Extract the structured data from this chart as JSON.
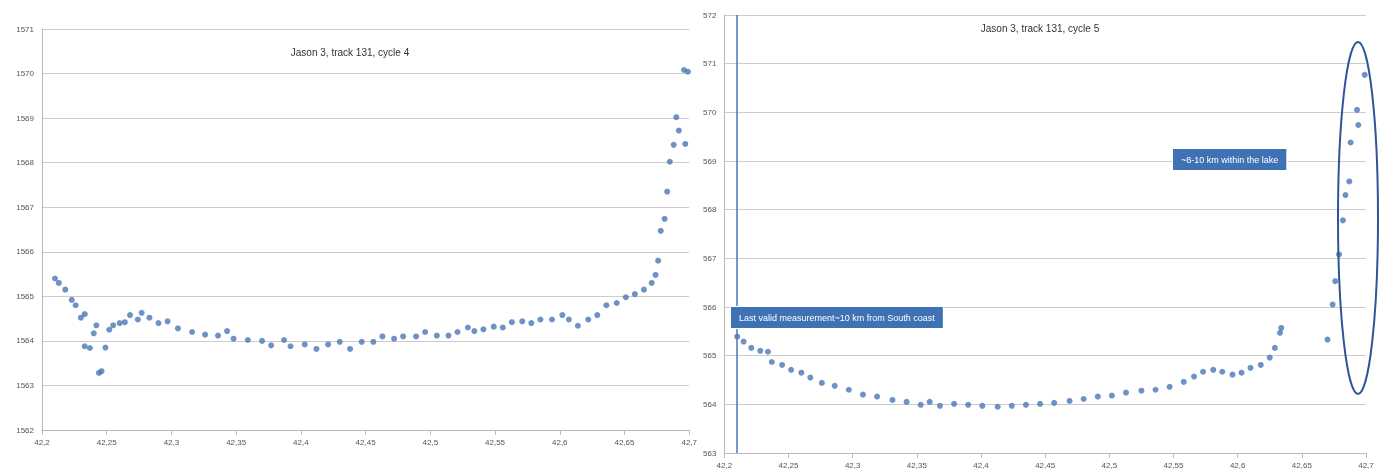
{
  "chart_data": [
    {
      "type": "scatter",
      "title": "Jason 3, track 131, cycle 4",
      "marker": "circle",
      "grid": "y",
      "xlim": [
        42.2,
        42.7
      ],
      "xticks": [
        {
          "value": 42.2,
          "label": "42,2"
        },
        {
          "value": 42.25,
          "label": "42,25"
        },
        {
          "value": 42.3,
          "label": "42,3"
        },
        {
          "value": 42.35,
          "label": "42,35"
        },
        {
          "value": 42.4,
          "label": "42,4"
        },
        {
          "value": 42.45,
          "label": "42,45"
        },
        {
          "value": 42.5,
          "label": "42,5"
        },
        {
          "value": 42.55,
          "label": "42,55"
        },
        {
          "value": 42.6,
          "label": "42,6"
        },
        {
          "value": 42.65,
          "label": "42,65"
        },
        {
          "value": 42.7,
          "label": "42,7"
        }
      ],
      "ylim": [
        1562,
        1571
      ],
      "yticks": [
        1562,
        1563,
        1564,
        1565,
        1566,
        1567,
        1568,
        1569,
        1570,
        1571
      ],
      "series": [
        {
          "color": "#4a76b8",
          "x": [
            42.21,
            42.213,
            42.218,
            42.223,
            42.226,
            42.23,
            42.233,
            42.233,
            42.237,
            42.24,
            42.242,
            42.244,
            42.246,
            42.249,
            42.252,
            42.255,
            42.26,
            42.264,
            42.268,
            42.274,
            42.277,
            42.283,
            42.29,
            42.297,
            42.305,
            42.316,
            42.326,
            42.336,
            42.343,
            42.348,
            42.359,
            42.37,
            42.377,
            42.387,
            42.392,
            42.403,
            42.412,
            42.421,
            42.43,
            42.438,
            42.447,
            42.456,
            42.463,
            42.472,
            42.479,
            42.489,
            42.496,
            42.505,
            42.514,
            42.521,
            42.529,
            42.534,
            42.541,
            42.549,
            42.556,
            42.563,
            42.571,
            42.578,
            42.585,
            42.594,
            42.602,
            42.607,
            42.614,
            42.622,
            42.629,
            42.636,
            42.644,
            42.651,
            42.658,
            42.665,
            42.671,
            42.674,
            42.676,
            42.678,
            42.681,
            42.683,
            42.685,
            42.688,
            42.69,
            42.692,
            42.697,
            42.696,
            42.699
          ],
          "values": [
            1565.4,
            1565.3,
            1565.15,
            1564.92,
            1564.8,
            1564.52,
            1564.6,
            1563.88,
            1563.84,
            1564.17,
            1564.35,
            1563.28,
            1563.32,
            1563.85,
            1564.25,
            1564.35,
            1564.4,
            1564.42,
            1564.58,
            1564.48,
            1564.63,
            1564.52,
            1564.4,
            1564.44,
            1564.28,
            1564.2,
            1564.14,
            1564.12,
            1564.22,
            1564.05,
            1564.02,
            1564.0,
            1563.9,
            1564.02,
            1563.88,
            1563.92,
            1563.82,
            1563.92,
            1563.98,
            1563.82,
            1563.98,
            1563.98,
            1564.1,
            1564.05,
            1564.1,
            1564.1,
            1564.2,
            1564.12,
            1564.12,
            1564.2,
            1564.3,
            1564.22,
            1564.26,
            1564.32,
            1564.3,
            1564.42,
            1564.44,
            1564.4,
            1564.48,
            1564.48,
            1564.58,
            1564.48,
            1564.34,
            1564.48,
            1564.58,
            1564.8,
            1564.85,
            1564.98,
            1565.05,
            1565.15,
            1565.3,
            1565.48,
            1565.8,
            1566.47,
            1566.74,
            1567.35,
            1568.02,
            1568.4,
            1569.02,
            1568.72,
            1568.42,
            1570.08,
            1570.04
          ]
        }
      ]
    },
    {
      "type": "scatter",
      "title": "Jason 3, track 131, cycle 5",
      "marker": "circle",
      "grid": "y",
      "xlim": [
        42.2,
        42.7
      ],
      "xticks": [
        {
          "value": 42.2,
          "label": "42,2"
        },
        {
          "value": 42.25,
          "label": "42,25"
        },
        {
          "value": 42.3,
          "label": "42,3"
        },
        {
          "value": 42.35,
          "label": "42,35"
        },
        {
          "value": 42.4,
          "label": "42,4"
        },
        {
          "value": 42.45,
          "label": "42,45"
        },
        {
          "value": 42.5,
          "label": "42,5"
        },
        {
          "value": 42.55,
          "label": "42,55"
        },
        {
          "value": 42.6,
          "label": "42,6"
        },
        {
          "value": 42.65,
          "label": "42,65"
        },
        {
          "value": 42.7,
          "label": "42,7"
        }
      ],
      "ylim": [
        563,
        572
      ],
      "yticks": [
        563,
        564,
        565,
        566,
        567,
        568,
        569,
        570,
        571,
        572
      ],
      "annotations": [
        "Last valid measurement~10 km from South coast",
        "~8-10 km within the lake"
      ],
      "ref_lines": [
        {
          "axis": "x",
          "value": 42.21,
          "color": "#4a7ab5"
        }
      ],
      "series": [
        {
          "color": "#4a76b8",
          "x": [
            42.21,
            42.215,
            42.221,
            42.228,
            42.234,
            42.237,
            42.245,
            42.252,
            42.26,
            42.267,
            42.276,
            42.286,
            42.297,
            42.308,
            42.319,
            42.331,
            42.342,
            42.353,
            42.36,
            42.368,
            42.379,
            42.39,
            42.401,
            42.413,
            42.424,
            42.435,
            42.446,
            42.457,
            42.469,
            42.48,
            42.491,
            42.502,
            42.513,
            42.525,
            42.536,
            42.547,
            42.558,
            42.566,
            42.573,
            42.581,
            42.588,
            42.596,
            42.603,
            42.61,
            42.618,
            42.625,
            42.629,
            42.633,
            42.634,
            42.67,
            42.674,
            42.676,
            42.679,
            42.682,
            42.684,
            42.687,
            42.688,
            42.693,
            42.694,
            42.699
          ],
          "values": [
            565.39,
            565.29,
            565.16,
            565.1,
            565.08,
            564.87,
            564.81,
            564.71,
            564.65,
            564.55,
            564.44,
            564.38,
            564.3,
            564.2,
            564.16,
            564.09,
            564.05,
            563.99,
            564.05,
            563.97,
            564.01,
            563.99,
            563.97,
            563.95,
            563.97,
            563.99,
            564.01,
            564.03,
            564.07,
            564.11,
            564.16,
            564.18,
            564.24,
            564.28,
            564.3,
            564.36,
            564.46,
            564.57,
            564.67,
            564.71,
            564.67,
            564.61,
            564.65,
            564.75,
            564.81,
            564.96,
            565.16,
            565.47,
            565.57,
            565.33,
            566.05,
            566.53,
            567.08,
            567.78,
            568.3,
            568.58,
            569.38,
            570.05,
            569.74,
            570.77
          ]
        }
      ]
    }
  ]
}
